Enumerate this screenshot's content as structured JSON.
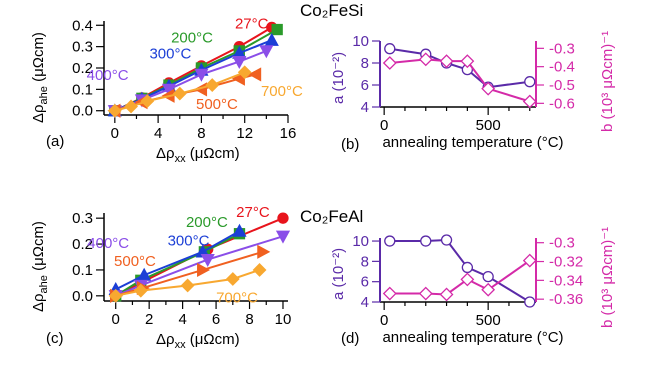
{
  "chart_data": [
    {
      "id": "a",
      "type": "line",
      "panel_label": "(a)",
      "xlabel": "Δρxx (μΩcm)",
      "ylabel": "Δρahe (μΩcm)",
      "xlim": [
        -1,
        16
      ],
      "ylim": [
        -0.02,
        0.42
      ],
      "xticks": [
        0,
        4,
        8,
        12,
        16
      ],
      "yticks": [
        0.0,
        0.1,
        0.2,
        0.3,
        0.4
      ],
      "series": [
        {
          "name": "27°C",
          "color": "#e8141c",
          "marker": "circle",
          "x": [
            0,
            2.5,
            5,
            8,
            11.5,
            14.5
          ],
          "y": [
            0,
            0.06,
            0.13,
            0.21,
            0.3,
            0.39
          ]
        },
        {
          "name": "200°C",
          "color": "#2a9a2a",
          "marker": "square",
          "x": [
            0,
            2.5,
            5,
            8,
            11.5,
            15
          ],
          "y": [
            0,
            0.058,
            0.12,
            0.2,
            0.28,
            0.38
          ]
        },
        {
          "name": "300°C",
          "color": "#1c3fd6",
          "marker": "triangle-up",
          "x": [
            0,
            2.5,
            5,
            8,
            11.5,
            14.5
          ],
          "y": [
            0,
            0.055,
            0.115,
            0.19,
            0.27,
            0.33
          ]
        },
        {
          "name": "400°C",
          "color": "#8a4ee8",
          "marker": "triangle-down",
          "x": [
            0,
            2.5,
            5,
            8,
            11.5,
            14
          ],
          "y": [
            0,
            0.05,
            0.1,
            0.17,
            0.23,
            0.28
          ]
        },
        {
          "name": "500°C",
          "color": "#f06020",
          "marker": "triangle-left",
          "x": [
            0,
            2.5,
            5,
            8,
            11.5,
            13
          ],
          "y": [
            0,
            0.04,
            0.07,
            0.1,
            0.15,
            0.17
          ]
        },
        {
          "name": "700°C",
          "color": "#f8a830",
          "marker": "diamond",
          "x": [
            0,
            1.5,
            3,
            6,
            9,
            12
          ],
          "y": [
            0,
            0.02,
            0.045,
            0.08,
            0.12,
            0.18
          ]
        }
      ],
      "annotations": [
        {
          "text": "27°C",
          "color": "#e8141c",
          "x": 11.1,
          "y": 0.385
        },
        {
          "text": "200°C",
          "color": "#2a9a2a",
          "x": 5.2,
          "y": 0.32
        },
        {
          "text": "300°C",
          "color": "#1c3fd6",
          "x": 3.2,
          "y": 0.245
        },
        {
          "text": "400°C",
          "color": "#8a4ee8",
          "x": -2.6,
          "y": 0.145
        },
        {
          "text": "500°C",
          "color": "#f06020",
          "x": 7.5,
          "y": 0.007
        },
        {
          "text": "700°C",
          "color": "#f8a830",
          "x": 13.5,
          "y": 0.07
        }
      ]
    },
    {
      "id": "b",
      "type": "line",
      "panel_label": "(b)",
      "xlabel": "annealing temperature (°C)",
      "ylabel": "a (10⁻²)",
      "ylabel_right": "b (10³ μΩcm)⁻¹",
      "xlim": [
        -20,
        730
      ],
      "ylim": [
        4,
        10
      ],
      "ylim_right": [
        -0.62,
        -0.26
      ],
      "xticks": [
        0,
        500
      ],
      "yticks": [
        4,
        6,
        8,
        10
      ],
      "yticks_right": [
        -0.3,
        -0.4,
        -0.5,
        -0.6
      ],
      "left_color": "#5a2aa8",
      "right_color": "#d42aa8",
      "series": [
        {
          "name": "a",
          "axis": "left",
          "color": "#5a2aa8",
          "marker": "circle",
          "x": [
            27,
            200,
            300,
            400,
            500,
            700
          ],
          "y": [
            9.3,
            8.8,
            8.0,
            7.4,
            5.8,
            6.3
          ]
        },
        {
          "name": "b",
          "axis": "right",
          "color": "#d42aa8",
          "marker": "diamond",
          "x": [
            27,
            200,
            300,
            400,
            500,
            700
          ],
          "y": [
            -0.38,
            -0.36,
            -0.37,
            -0.37,
            -0.52,
            -0.59
          ]
        }
      ]
    },
    {
      "id": "c",
      "type": "line",
      "panel_label": "(c)",
      "xlabel": "Δρxx (μΩcm)",
      "ylabel": "Δρahe (μΩcm)",
      "xlim": [
        -0.7,
        10.3
      ],
      "ylim": [
        -0.02,
        0.32
      ],
      "xticks": [
        0,
        2,
        4,
        6,
        8,
        10
      ],
      "yticks": [
        0.0,
        0.1,
        0.2,
        0.3
      ],
      "series": [
        {
          "name": "27°C",
          "color": "#e8141c",
          "marker": "circle",
          "x": [
            0,
            1.5,
            5.5,
            10
          ],
          "y": [
            0,
            0.05,
            0.18,
            0.3
          ]
        },
        {
          "name": "200°C",
          "color": "#2a9a2a",
          "marker": "square",
          "x": [
            0,
            1.5,
            5.3,
            7.4
          ],
          "y": [
            0,
            0.06,
            0.17,
            0.24
          ]
        },
        {
          "name": "300°C",
          "color": "#1c3fd6",
          "marker": "triangle-up",
          "x": [
            0,
            1.7,
            5.2,
            7.4
          ],
          "y": [
            0.025,
            0.08,
            0.17,
            0.25
          ]
        },
        {
          "name": "400°C",
          "color": "#8a4ee8",
          "marker": "triangle-down",
          "x": [
            0,
            1.5,
            5.5,
            10
          ],
          "y": [
            0,
            0.04,
            0.14,
            0.23
          ]
        },
        {
          "name": "500°C",
          "color": "#f06020",
          "marker": "triangle-right",
          "x": [
            0,
            1.6,
            5.2,
            8.8
          ],
          "y": [
            0,
            0.03,
            0.1,
            0.17
          ]
        },
        {
          "name": "700°C",
          "color": "#f8a830",
          "marker": "diamond",
          "x": [
            0,
            1.5,
            4.3,
            7,
            8.6
          ],
          "y": [
            0,
            0.02,
            0.04,
            0.065,
            0.1
          ]
        }
      ],
      "annotations": [
        {
          "text": "27°C",
          "color": "#e8141c",
          "x": 7.2,
          "y": 0.305
        },
        {
          "text": "200°C",
          "color": "#2a9a2a",
          "x": 4.2,
          "y": 0.265
        },
        {
          "text": "300°C",
          "color": "#1c3fd6",
          "x": 3.1,
          "y": 0.195
        },
        {
          "text": "400°C",
          "color": "#8a4ee8",
          "x": -1.7,
          "y": 0.185
        },
        {
          "text": "500°C",
          "color": "#f06020",
          "x": -0.1,
          "y": 0.115
        },
        {
          "text": "700°C",
          "color": "#f8a830",
          "x": 6.0,
          "y": -0.025
        }
      ]
    },
    {
      "id": "d",
      "type": "line",
      "panel_label": "(d)",
      "xlabel": "annealing temperature (°C)",
      "ylabel": "a (10⁻²)",
      "ylabel_right": "b (10³ μΩcm)⁻¹",
      "xlim": [
        -20,
        730
      ],
      "ylim": [
        4,
        10.3
      ],
      "ylim_right": [
        -0.363,
        -0.295
      ],
      "xticks": [
        0,
        500
      ],
      "yticks": [
        4,
        6,
        8,
        10
      ],
      "yticks_right": [
        -0.3,
        -0.32,
        -0.34,
        -0.36
      ],
      "left_color": "#5a2aa8",
      "right_color": "#d42aa8",
      "series": [
        {
          "name": "a",
          "axis": "left",
          "color": "#5a2aa8",
          "marker": "circle",
          "x": [
            27,
            200,
            300,
            400,
            500,
            700
          ],
          "y": [
            10.0,
            10.0,
            10.1,
            7.4,
            6.5,
            4.0
          ]
        },
        {
          "name": "b",
          "axis": "right",
          "color": "#d42aa8",
          "marker": "diamond",
          "x": [
            27,
            200,
            300,
            400,
            500,
            700
          ],
          "y": [
            -0.354,
            -0.354,
            -0.355,
            -0.339,
            -0.35,
            -0.319
          ]
        }
      ]
    }
  ],
  "titles": {
    "top": "Co₂FeSi",
    "bottom": "Co₂FeAl"
  }
}
